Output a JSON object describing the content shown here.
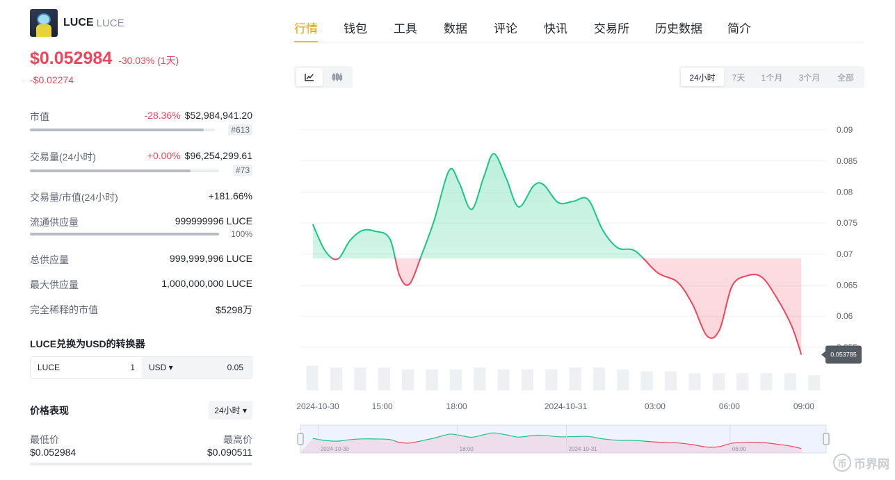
{
  "coin": {
    "name": "LUCE",
    "symbol": "LUCE"
  },
  "price": {
    "value": "$0.052984",
    "change": "-30.03% (1天)",
    "abs_change": "-$0.02274"
  },
  "stats": {
    "market_cap": {
      "label": "市值",
      "pct": "-28.36%",
      "value": "$52,984,941.20",
      "rank": "#613",
      "bar": 0.94
    },
    "volume": {
      "label": "交易量(24小时)",
      "pct": "+0.00%",
      "value": "$96,254,299.61",
      "rank": "#73",
      "bar": 0.85
    },
    "vol_mcap": {
      "label": "交易量/市值(24小时)",
      "value": "+181.66%"
    },
    "circulating": {
      "label": "流通供应量",
      "value": "999999996 LUCE",
      "sub": "100%",
      "bar": 1.0
    },
    "total_supply": {
      "label": "总供应量",
      "value": "999,999,996 LUCE"
    },
    "max_supply": {
      "label": "最大供应量",
      "value": "1,000,000,000 LUCE"
    },
    "fdv": {
      "label": "完全稀释的市值",
      "value": "$5298万"
    }
  },
  "converter": {
    "title": "LUCE兑换为USD的转换器",
    "from_sym": "LUCE",
    "from_val": "1",
    "to_sym": "USD ▾",
    "to_val": "0.05"
  },
  "performance": {
    "title": "价格表现",
    "range": "24小时 ▾",
    "low_label": "最低价",
    "high_label": "最高价",
    "low": "$0.052984",
    "high": "$0.090511"
  },
  "tabs": [
    "行情",
    "钱包",
    "工具",
    "数据",
    "评论",
    "快讯",
    "交易所",
    "历史数据",
    "简介"
  ],
  "active_tab": 0,
  "ranges": [
    "24小时",
    "7天",
    "1个月",
    "3个月",
    "全部"
  ],
  "active_range": 0,
  "watermark": "币界网",
  "colors": {
    "up": "#17c784",
    "down": "#f0445a",
    "accent": "#f0b90b"
  },
  "chart_data": {
    "type": "area",
    "title": "",
    "baseline": 0.0693,
    "current_label": "0.053785",
    "y_ticks": [
      "0.09",
      "0.085",
      "0.08",
      "0.075",
      "0.07",
      "0.065",
      "0.06",
      "0.055"
    ],
    "ylim": [
      0.0505,
      0.0908
    ],
    "x_ticks": [
      "2024-10-30",
      "15:00",
      "18:00",
      "2024-10-31",
      "03:00",
      "06:00",
      "09:00"
    ],
    "x_tick_positions": [
      0.7,
      3.3,
      6.3,
      10.7,
      14.3,
      17.3,
      20.3
    ],
    "x_range": [
      0,
      21.2
    ],
    "points": [
      [
        0.5,
        0.0748
      ],
      [
        1.0,
        0.0705
      ],
      [
        1.5,
        0.0692
      ],
      [
        2.0,
        0.0722
      ],
      [
        2.5,
        0.0738
      ],
      [
        3.0,
        0.0737
      ],
      [
        3.6,
        0.0725
      ],
      [
        4.0,
        0.0665
      ],
      [
        4.4,
        0.0652
      ],
      [
        4.9,
        0.07
      ],
      [
        5.4,
        0.0755
      ],
      [
        6.0,
        0.0835
      ],
      [
        6.4,
        0.0815
      ],
      [
        6.9,
        0.0772
      ],
      [
        7.4,
        0.0825
      ],
      [
        7.8,
        0.0862
      ],
      [
        8.3,
        0.0822
      ],
      [
        8.8,
        0.0776
      ],
      [
        9.4,
        0.081
      ],
      [
        9.8,
        0.0812
      ],
      [
        10.4,
        0.0783
      ],
      [
        11.0,
        0.0785
      ],
      [
        11.6,
        0.0788
      ],
      [
        12.2,
        0.0738
      ],
      [
        12.8,
        0.071
      ],
      [
        13.5,
        0.0705
      ],
      [
        14.4,
        0.067
      ],
      [
        15.2,
        0.0655
      ],
      [
        15.8,
        0.062
      ],
      [
        16.4,
        0.0568
      ],
      [
        16.9,
        0.0578
      ],
      [
        17.4,
        0.0648
      ],
      [
        18.0,
        0.0665
      ],
      [
        18.6,
        0.0663
      ],
      [
        19.2,
        0.063
      ],
      [
        19.8,
        0.0585
      ],
      [
        20.2,
        0.0538
      ]
    ],
    "volume_bars": [
      0.65,
      0.6,
      0.6,
      0.6,
      0.55,
      0.55,
      0.55,
      0.6,
      0.55,
      0.55,
      0.55,
      0.6,
      0.6,
      0.55,
      0.5,
      0.5,
      0.45,
      0.45,
      0.45,
      0.45,
      0.45,
      0.4
    ],
    "navigator_ticks": [
      "2024-10-30",
      "18:00",
      "2024-10-31",
      "06:00"
    ]
  }
}
